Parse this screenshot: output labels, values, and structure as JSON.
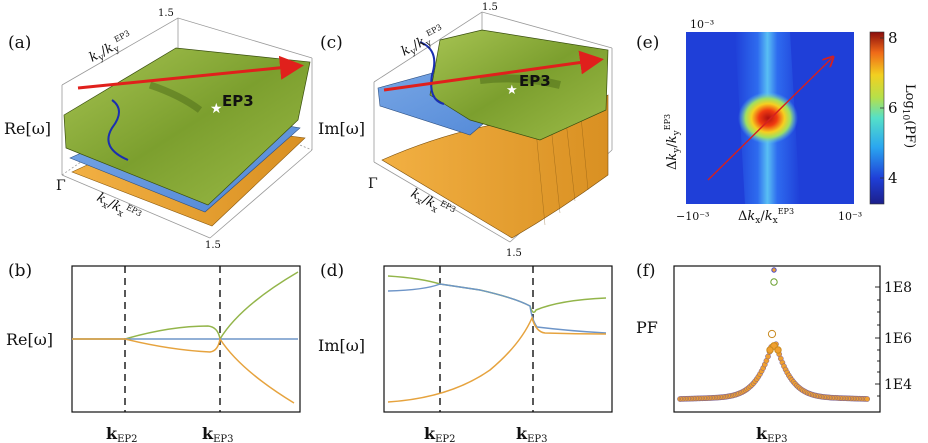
{
  "panels": {
    "a": {
      "letter": "(a)",
      "ylabel": "Re[ω]",
      "ky_label": "k_y/k_y^EP3",
      "kx_label": "k_x/k_x^EP3",
      "origin": "Γ",
      "tick_top": "1.5",
      "tick_bottom": "1.5",
      "ep_label": "EP3"
    },
    "c": {
      "letter": "(c)",
      "ylabel": "Im[ω]",
      "ky_label": "k_y/k_y^EP3",
      "kx_label": "k_x/k_x^EP3",
      "origin": "Γ",
      "tick_top": "1.5",
      "tick_bottom": "1.5",
      "ep_label": "EP3"
    },
    "e": {
      "letter": "(e)",
      "xlabel": "Δk_x/k_x^EP3",
      "ylabel": "Δk_y/k_y^EP3",
      "x_left": "−10⁻³",
      "x_right": "10⁻³",
      "y_top": "10⁻³",
      "colorbar_label": "Log₁₀(PF)",
      "colorbar_ticks": [
        "8",
        "6",
        "4"
      ]
    },
    "b": {
      "letter": "(b)",
      "ylabel": "Re[ω]",
      "ticks": [
        "k",
        "k"
      ],
      "tick_subs": [
        "EP2",
        "EP3"
      ]
    },
    "d": {
      "letter": "(d)",
      "ylabel": "Im[ω]",
      "ticks": [
        "k",
        "k"
      ],
      "tick_subs": [
        "EP2",
        "EP3"
      ]
    },
    "f": {
      "letter": "(f)",
      "ylabel": "PF",
      "tick": "k",
      "tick_sub": "EP3",
      "right_ticks": [
        "1E8",
        "1E6",
        "1E4"
      ]
    }
  },
  "colors": {
    "green": "#8aac3c",
    "orange": "#e8a93a",
    "blue": "#5b8fd0",
    "red": "#e0201c",
    "line_green": "#93b54a",
    "line_orange": "#e6a33e",
    "line_blue": "#6e95c8"
  }
}
